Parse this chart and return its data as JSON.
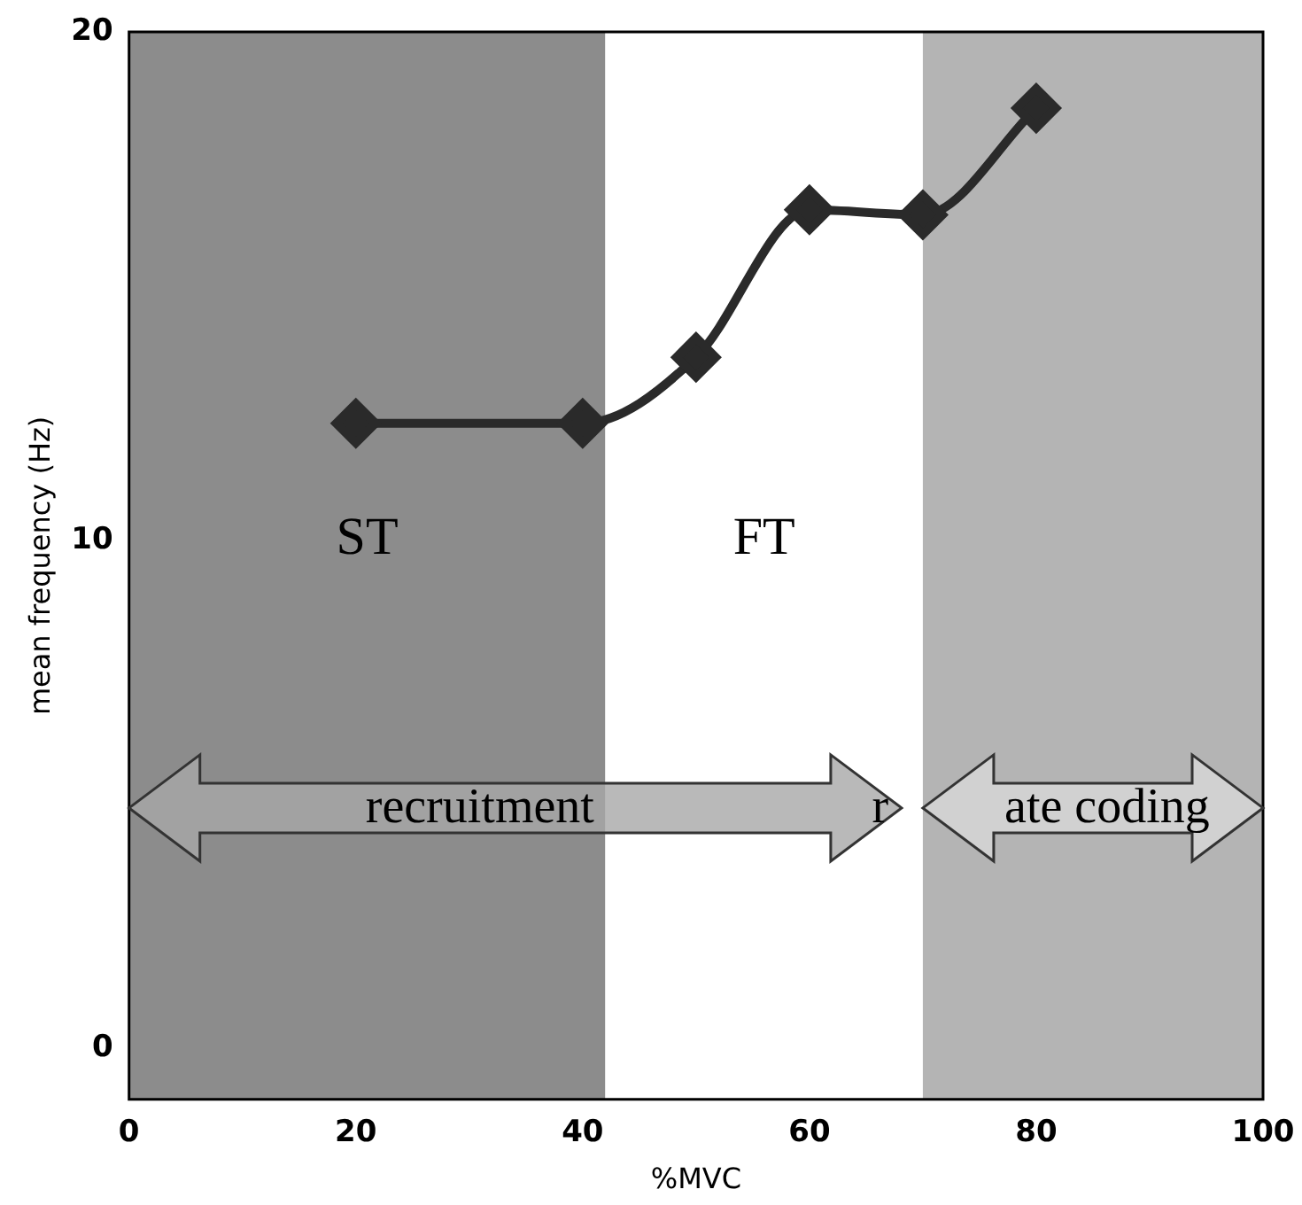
{
  "chart_data": {
    "type": "line",
    "xlabel": "%MVC",
    "ylabel": "mean frequency (Hz)",
    "x": [
      20,
      40,
      50,
      60,
      70,
      80
    ],
    "values": [
      12.3,
      12.3,
      13.6,
      16.5,
      16.4,
      18.5
    ],
    "color": "#2a2a2a",
    "marker": "diamond",
    "xlim": [
      0,
      100
    ],
    "xticks": [
      0,
      20,
      40,
      60,
      80,
      100
    ],
    "ylim": [
      -1,
      20
    ],
    "yticks": [
      0,
      10,
      20
    ],
    "grid": false,
    "legend": false,
    "bands": [
      {
        "axis": "x",
        "from": 0,
        "to": 42,
        "label": "ST",
        "color": "#8c8c8c"
      },
      {
        "axis": "x",
        "from": 42,
        "to": 70,
        "label": "FT",
        "color": "#ffffff"
      },
      {
        "axis": "x",
        "from": 70,
        "to": 100,
        "color": "#b4b4b4"
      }
    ],
    "annotations": [
      "recruitment",
      "r",
      "ate coding"
    ]
  }
}
